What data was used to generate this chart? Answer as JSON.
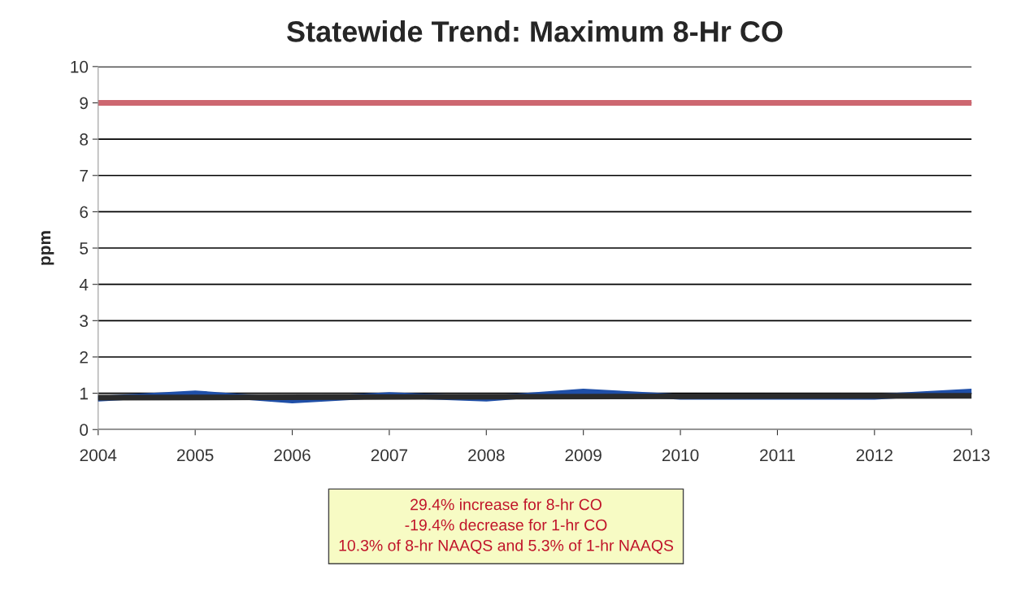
{
  "chart_data": {
    "type": "line",
    "title": "Statewide Trend: Maximum 8-Hr CO",
    "ylabel": "ppm",
    "x": [
      2004,
      2005,
      2006,
      2007,
      2008,
      2009,
      2010,
      2011,
      2012,
      2013
    ],
    "series": [
      {
        "color": "#1f4fa8",
        "values": [
          0.85,
          1.0,
          0.8,
          0.95,
          0.85,
          1.05,
          0.9,
          0.9,
          0.9,
          1.05
        ]
      },
      {
        "type": "line",
        "x": [
          2004,
          2013
        ],
        "color": "#2b2b2b",
        "values": [
          0.88,
          0.93
        ]
      }
    ],
    "xlim": [
      2004,
      2013
    ],
    "xticks": [
      2004,
      2005,
      2006,
      2007,
      2008,
      2009,
      2010,
      2011,
      2012,
      2013
    ],
    "ylim": [
      0,
      10
    ],
    "yticks": [
      0,
      1,
      2,
      3,
      4,
      5,
      6,
      7,
      8,
      9,
      10
    ],
    "grid": "y",
    "ref_lines": [
      {
        "axis": "y",
        "value": 9,
        "color": "#cd6770"
      }
    ],
    "annotations": [
      "29.4% increase for 8-hr CO",
      "-19.4% decrease for 1-hr CO",
      "10.3% of 8-hr NAAQS and 5.3% of 1-hr NAAQS"
    ],
    "legend": false
  }
}
